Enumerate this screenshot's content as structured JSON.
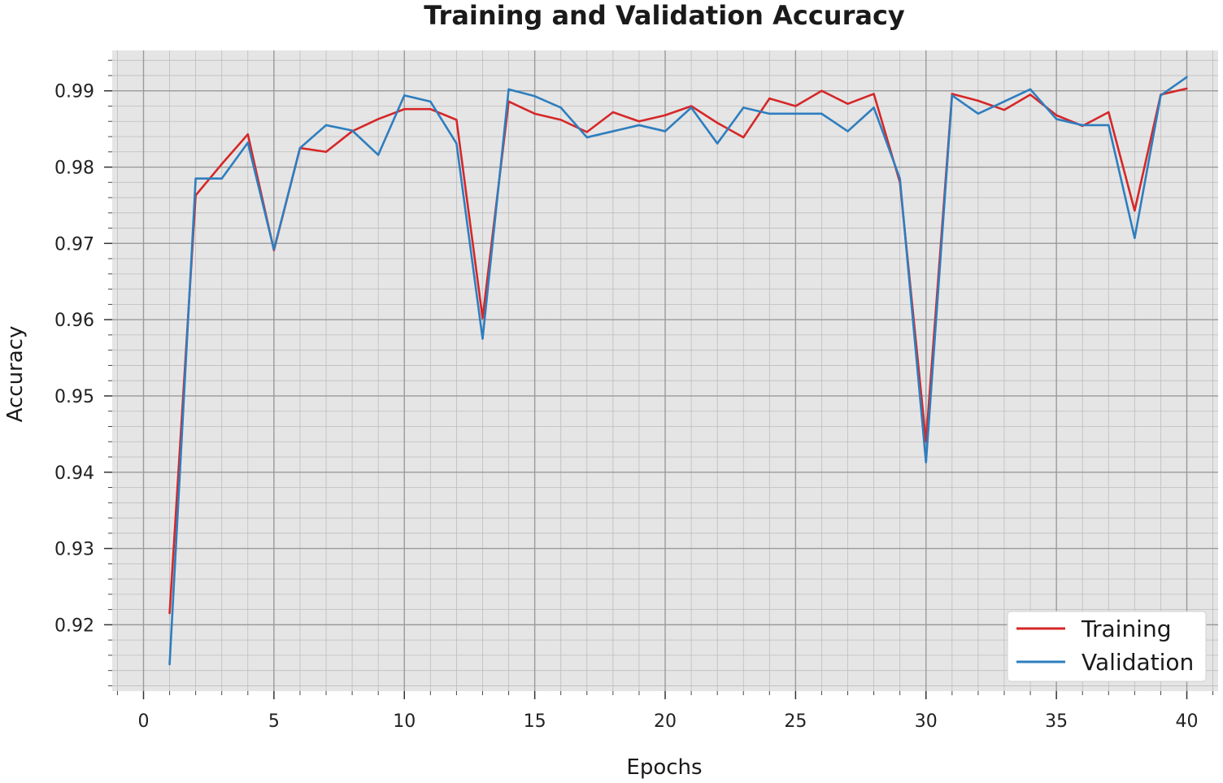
{
  "chart_data": {
    "type": "line",
    "title": "Training and Validation Accuracy",
    "xlabel": "Epochs",
    "ylabel": "Accuracy",
    "xlim": [
      -1.2,
      41.2
    ],
    "ylim": [
      0.9113,
      0.9953
    ],
    "xticks": [
      0,
      5,
      10,
      15,
      20,
      25,
      30,
      35,
      40
    ],
    "yticks": [
      0.92,
      0.93,
      0.94,
      0.95,
      0.96,
      0.97,
      0.98,
      0.99
    ],
    "ytick_labels": [
      "0.92",
      "0.93",
      "0.94",
      "0.95",
      "0.96",
      "0.97",
      "0.98",
      "0.99"
    ],
    "grid": true,
    "legend_position": "bottom-right",
    "x": [
      1,
      2,
      3,
      4,
      5,
      6,
      7,
      8,
      9,
      10,
      11,
      12,
      13,
      14,
      15,
      16,
      17,
      18,
      19,
      20,
      21,
      22,
      23,
      24,
      25,
      26,
      27,
      28,
      29,
      30,
      31,
      32,
      33,
      34,
      35,
      36,
      37,
      38,
      39,
      40
    ],
    "series": [
      {
        "name": "Training",
        "color": "#d62728",
        "values": [
          0.9215,
          0.9763,
          0.9804,
          0.9843,
          0.9691,
          0.9825,
          0.982,
          0.9847,
          0.9863,
          0.9876,
          0.9876,
          0.9862,
          0.9602,
          0.9886,
          0.987,
          0.9862,
          0.9846,
          0.9872,
          0.986,
          0.9868,
          0.988,
          0.9858,
          0.9839,
          0.989,
          0.988,
          0.99,
          0.9883,
          0.9896,
          0.978,
          0.944,
          0.9896,
          0.9887,
          0.9875,
          0.9895,
          0.9868,
          0.9854,
          0.9872,
          0.9743,
          0.9895,
          0.9903
        ]
      },
      {
        "name": "Validation",
        "color": "#2e7ebf",
        "values": [
          0.9148,
          0.9785,
          0.9785,
          0.9832,
          0.9692,
          0.9825,
          0.9855,
          0.9848,
          0.9816,
          0.9894,
          0.9886,
          0.9831,
          0.9575,
          0.9902,
          0.9893,
          0.9878,
          0.9839,
          0.9847,
          0.9855,
          0.9847,
          0.9878,
          0.9831,
          0.9878,
          0.987,
          0.987,
          0.987,
          0.9847,
          0.9878,
          0.9785,
          0.9413,
          0.9894,
          0.987,
          0.9886,
          0.9902,
          0.9863,
          0.9855,
          0.9855,
          0.9707,
          0.9894,
          0.9918
        ]
      }
    ]
  },
  "colors": {
    "plot_background": "#e5e5e5",
    "grid_major": "#9a9a9a",
    "grid_minor": "#bdbdbd",
    "legend_background": "#ffffff"
  }
}
